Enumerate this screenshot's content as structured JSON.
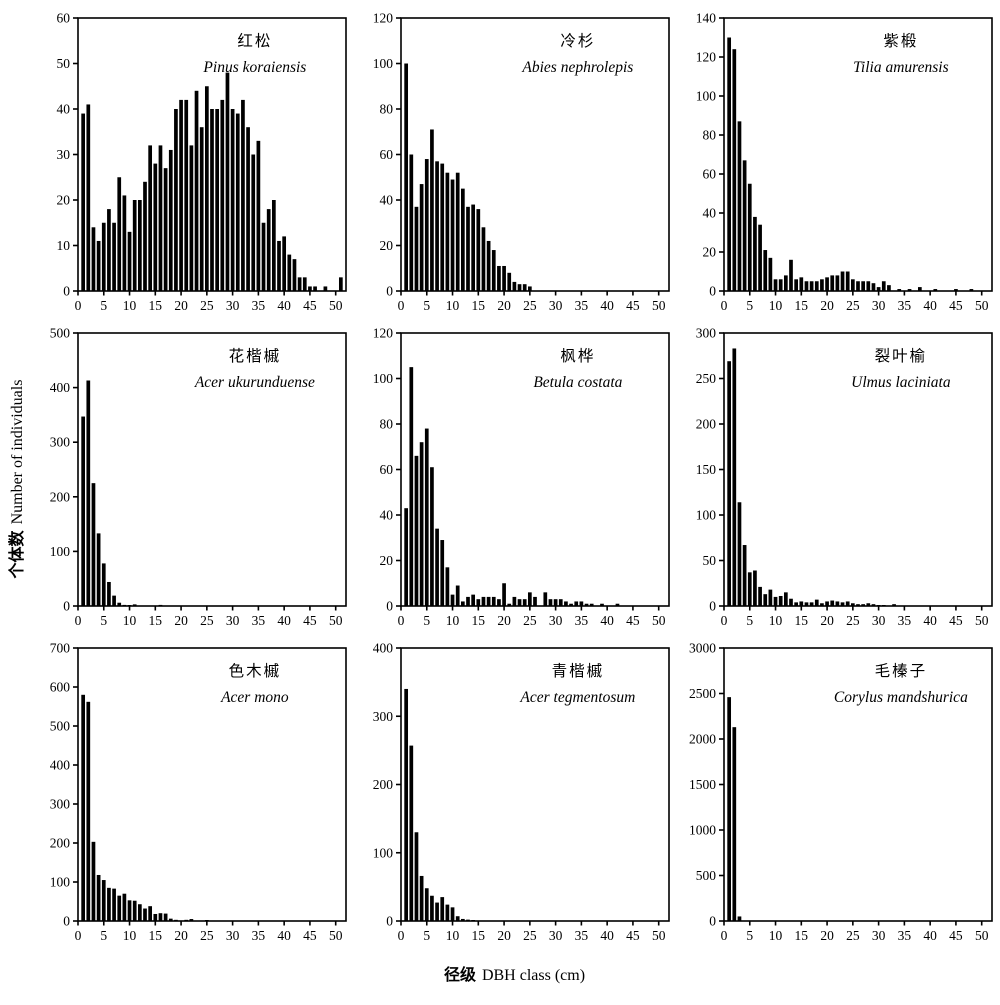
{
  "figure": {
    "ylabel_cn": "个体数",
    "ylabel_en": "Number of individuals",
    "xlabel_cn": "径级",
    "xlabel_en": "DBH class (cm)",
    "bar_color": "#000000",
    "axis_color": "#000000",
    "background": "#ffffff",
    "xlim": [
      0,
      52
    ],
    "xtick_step": 5,
    "xtick_max": 50,
    "class_start": 1
  },
  "chart_data": [
    {
      "type": "bar",
      "title_cn": "红松",
      "title_latin": "Pinus koraiensis",
      "ylim": [
        0,
        60
      ],
      "ytick_step": 10,
      "xlabel": "DBH class (cm)",
      "ylabel": "Number of individuals",
      "values": [
        39,
        41,
        14,
        11,
        15,
        18,
        15,
        25,
        21,
        13,
        20,
        20,
        24,
        32,
        28,
        32,
        27,
        31,
        40,
        42,
        42,
        32,
        44,
        36,
        45,
        40,
        40,
        42,
        48,
        40,
        39,
        42,
        36,
        30,
        33,
        15,
        18,
        20,
        11,
        12,
        8,
        7,
        3,
        3,
        1,
        1,
        0,
        1,
        0,
        0,
        3
      ]
    },
    {
      "type": "bar",
      "title_cn": "冷杉",
      "title_latin": "Abies nephrolepis",
      "ylim": [
        0,
        120
      ],
      "ytick_step": 20,
      "values": [
        100,
        60,
        37,
        47,
        58,
        71,
        57,
        56,
        52,
        49,
        52,
        45,
        37,
        38,
        36,
        28,
        22,
        18,
        11,
        11,
        8,
        4,
        3,
        3,
        2
      ]
    },
    {
      "type": "bar",
      "title_cn": "紫椴",
      "title_latin": "Tilia amurensis",
      "ylim": [
        0,
        140
      ],
      "ytick_step": 20,
      "values": [
        130,
        124,
        87,
        67,
        55,
        38,
        34,
        21,
        17,
        6,
        6,
        8,
        16,
        6,
        7,
        5,
        5,
        5,
        6,
        7,
        8,
        8,
        10,
        10,
        6,
        5,
        5,
        5,
        4,
        2,
        5,
        3,
        0,
        1,
        0,
        1,
        0,
        2,
        0,
        0,
        1,
        0,
        0,
        0,
        1,
        0,
        0,
        1
      ]
    },
    {
      "type": "bar",
      "title_cn": "花楷槭",
      "title_latin": "Acer ukurunduense",
      "ylim": [
        0,
        500
      ],
      "ytick_step": 100,
      "values": [
        347,
        413,
        225,
        133,
        78,
        44,
        19,
        6,
        2,
        1,
        3,
        0,
        0,
        0,
        0,
        2
      ]
    },
    {
      "type": "bar",
      "title_cn": "枫桦",
      "title_latin": "Betula costata",
      "ylim": [
        0,
        120
      ],
      "ytick_step": 20,
      "values": [
        43,
        105,
        66,
        72,
        78,
        61,
        34,
        29,
        17,
        5,
        9,
        2,
        4,
        5,
        3,
        4,
        4,
        4,
        3,
        10,
        1,
        4,
        3,
        3,
        6,
        4,
        0,
        6,
        3,
        3,
        3,
        2,
        1,
        2,
        2,
        1,
        1,
        0,
        1,
        0,
        0,
        1
      ]
    },
    {
      "type": "bar",
      "title_cn": "裂叶榆",
      "title_latin": "Ulmus laciniata",
      "ylim": [
        0,
        300
      ],
      "ytick_step": 50,
      "values": [
        269,
        283,
        114,
        67,
        37,
        39,
        21,
        13,
        18,
        10,
        11,
        15,
        8,
        4,
        5,
        4,
        4,
        7,
        3,
        5,
        6,
        5,
        4,
        5,
        3,
        2,
        2,
        3,
        2,
        1,
        1,
        0,
        2
      ]
    },
    {
      "type": "bar",
      "title_cn": "色木槭",
      "title_latin": "Acer mono",
      "ylim": [
        0,
        700
      ],
      "ytick_step": 100,
      "values": [
        580,
        562,
        203,
        118,
        105,
        85,
        83,
        65,
        70,
        53,
        52,
        43,
        32,
        38,
        18,
        20,
        19,
        6,
        3,
        0,
        3,
        5,
        0,
        0,
        2
      ]
    },
    {
      "type": "bar",
      "title_cn": "青楷槭",
      "title_latin": "Acer tegmentosum",
      "ylim": [
        0,
        400
      ],
      "ytick_step": 100,
      "values": [
        340,
        257,
        130,
        66,
        48,
        37,
        27,
        35,
        24,
        20,
        7,
        3,
        2,
        1
      ]
    },
    {
      "type": "bar",
      "title_cn": "毛榛子",
      "title_latin": "Corylus mandshurica",
      "ylim": [
        0,
        3000
      ],
      "ytick_step": 500,
      "values": [
        2460,
        2130,
        50
      ]
    }
  ]
}
